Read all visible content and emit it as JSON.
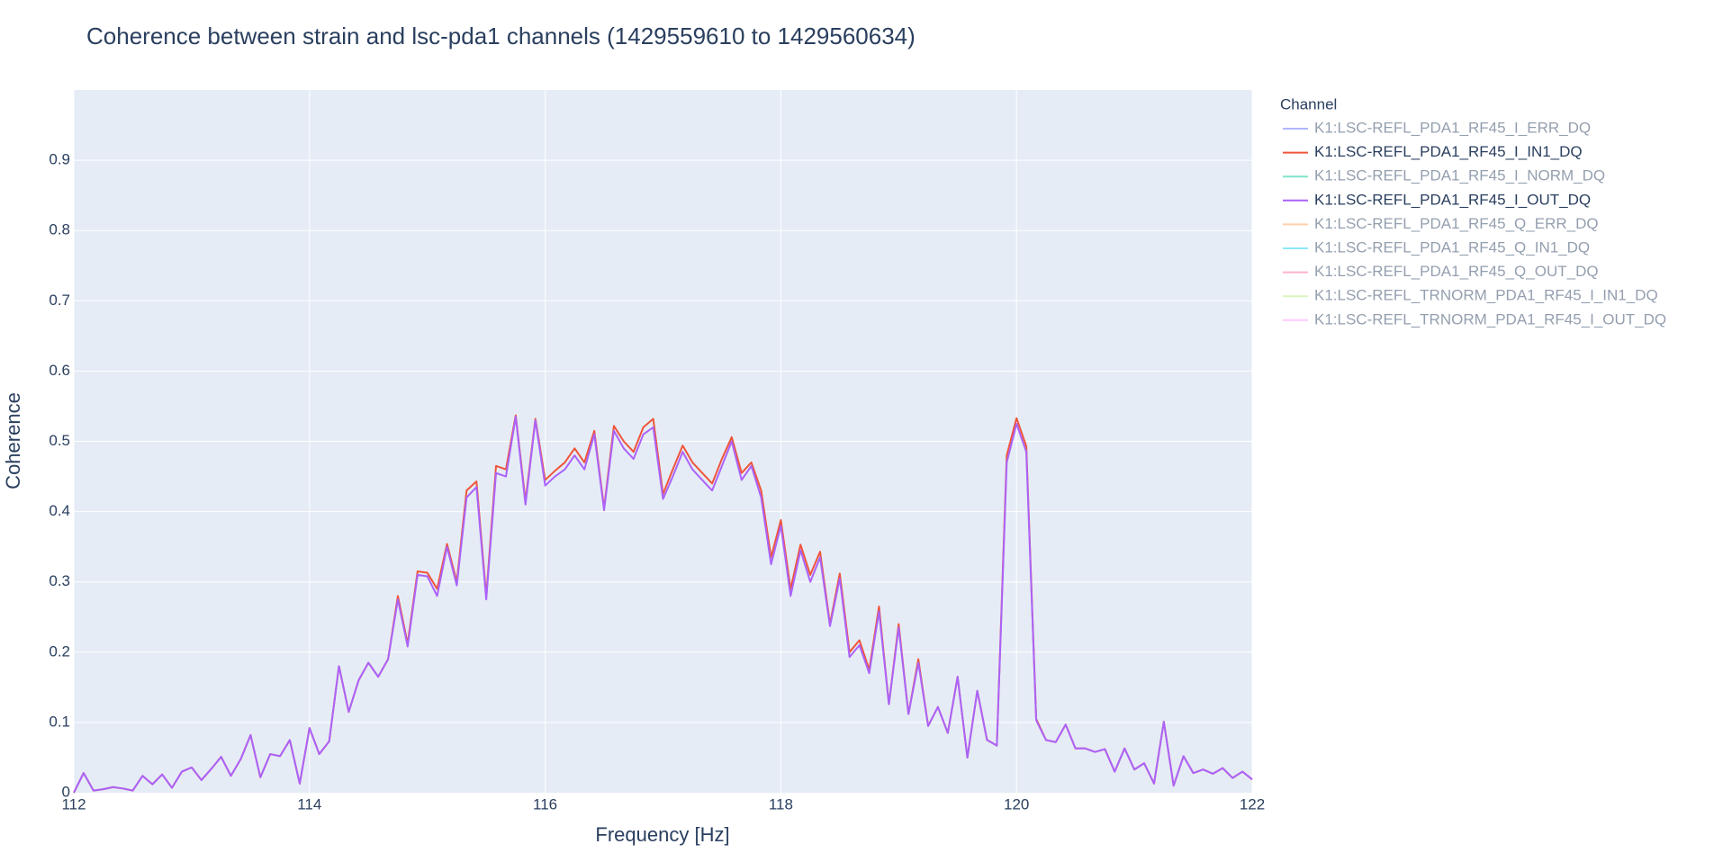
{
  "chart_data": {
    "type": "line",
    "title": "Coherence between strain and lsc-pda1 channels (1429559610 to 1429560634)",
    "x_label": "Frequency [Hz]",
    "y_label": "Coherence",
    "legend_title": "Channel",
    "x": [
      112,
      112.083,
      112.167,
      112.25,
      112.333,
      112.417,
      112.5,
      112.583,
      112.667,
      112.75,
      112.833,
      112.917,
      113,
      113.083,
      113.167,
      113.25,
      113.333,
      113.417,
      113.5,
      113.583,
      113.667,
      113.75,
      113.833,
      113.917,
      114,
      114.083,
      114.167,
      114.25,
      114.333,
      114.417,
      114.5,
      114.583,
      114.667,
      114.75,
      114.833,
      114.917,
      115,
      115.083,
      115.167,
      115.25,
      115.333,
      115.417,
      115.5,
      115.583,
      115.667,
      115.75,
      115.833,
      115.917,
      116,
      116.083,
      116.167,
      116.25,
      116.333,
      116.417,
      116.5,
      116.583,
      116.667,
      116.75,
      116.833,
      116.917,
      117,
      117.083,
      117.167,
      117.25,
      117.333,
      117.417,
      117.5,
      117.583,
      117.667,
      117.75,
      117.833,
      117.917,
      118,
      118.083,
      118.167,
      118.25,
      118.333,
      118.417,
      118.5,
      118.583,
      118.667,
      118.75,
      118.833,
      118.917,
      119,
      119.083,
      119.167,
      119.25,
      119.333,
      119.417,
      119.5,
      119.583,
      119.667,
      119.75,
      119.833,
      119.917,
      120,
      120.083,
      120.167,
      120.25,
      120.333,
      120.417,
      120.5,
      120.583,
      120.667,
      120.75,
      120.833,
      120.917,
      121,
      121.083,
      121.167,
      121.25,
      121.333,
      121.417,
      121.5,
      121.583,
      121.667,
      121.75,
      121.833,
      121.917,
      122
    ],
    "series": [
      {
        "name": "K1:LSC-REFL_PDA1_RF45_I_ERR_DQ",
        "color": "#636efa",
        "visible": "legendonly"
      },
      {
        "name": "K1:LSC-REFL_PDA1_RF45_I_IN1_DQ",
        "color": "#EF553B",
        "values": [
          0,
          0.028,
          0.003,
          0.005,
          0.008,
          0.006,
          0.003,
          0.024,
          0.012,
          0.026,
          0.007,
          0.03,
          0.036,
          0.018,
          0.034,
          0.051,
          0.024,
          0.048,
          0.082,
          0.022,
          0.055,
          0.052,
          0.075,
          0.013,
          0.092,
          0.055,
          0.073,
          0.18,
          0.115,
          0.16,
          0.185,
          0.165,
          0.19,
          0.28,
          0.212,
          0.315,
          0.313,
          0.29,
          0.354,
          0.3,
          0.43,
          0.443,
          0.28,
          0.465,
          0.46,
          0.537,
          0.415,
          0.532,
          0.445,
          0.458,
          0.47,
          0.49,
          0.47,
          0.515,
          0.405,
          0.522,
          0.5,
          0.485,
          0.52,
          0.532,
          0.425,
          0.46,
          0.494,
          0.47,
          0.455,
          0.44,
          0.475,
          0.506,
          0.455,
          0.47,
          0.43,
          0.335,
          0.388,
          0.29,
          0.353,
          0.31,
          0.343,
          0.24,
          0.312,
          0.2,
          0.217,
          0.175,
          0.265,
          0.126,
          0.24,
          0.112,
          0.19,
          0.095,
          0.122,
          0.085,
          0.165,
          0.05,
          0.145,
          0.075,
          0.067,
          0.48,
          0.533,
          0.493,
          0.105,
          0.075,
          0.072,
          0.097,
          0.063,
          0.063,
          0.058,
          0.062,
          0.03,
          0.063,
          0.033,
          0.042,
          0.013,
          0.101,
          0.01,
          0.052,
          0.028,
          0.033,
          0.027,
          0.035,
          0.021,
          0.03,
          0.019
        ]
      },
      {
        "name": "K1:LSC-REFL_PDA1_RF45_I_NORM_DQ",
        "color": "#00cc96",
        "visible": "legendonly"
      },
      {
        "name": "K1:LSC-REFL_PDA1_RF45_I_OUT_DQ",
        "color": "#ab63fa",
        "values": [
          0,
          0.028,
          0.003,
          0.005,
          0.008,
          0.006,
          0.003,
          0.024,
          0.012,
          0.026,
          0.007,
          0.03,
          0.036,
          0.018,
          0.034,
          0.051,
          0.024,
          0.048,
          0.082,
          0.022,
          0.055,
          0.052,
          0.075,
          0.013,
          0.092,
          0.055,
          0.073,
          0.18,
          0.115,
          0.16,
          0.185,
          0.165,
          0.19,
          0.275,
          0.208,
          0.31,
          0.308,
          0.28,
          0.35,
          0.295,
          0.42,
          0.435,
          0.275,
          0.455,
          0.45,
          0.535,
          0.41,
          0.53,
          0.437,
          0.45,
          0.46,
          0.48,
          0.46,
          0.51,
          0.402,
          0.515,
          0.49,
          0.475,
          0.51,
          0.52,
          0.418,
          0.45,
          0.485,
          0.46,
          0.445,
          0.43,
          0.465,
          0.5,
          0.445,
          0.465,
          0.42,
          0.325,
          0.38,
          0.28,
          0.345,
          0.3,
          0.335,
          0.237,
          0.305,
          0.193,
          0.21,
          0.17,
          0.258,
          0.126,
          0.235,
          0.112,
          0.185,
          0.095,
          0.122,
          0.085,
          0.165,
          0.05,
          0.145,
          0.075,
          0.067,
          0.47,
          0.525,
          0.485,
          0.103,
          0.075,
          0.072,
          0.097,
          0.063,
          0.063,
          0.058,
          0.062,
          0.03,
          0.063,
          0.033,
          0.042,
          0.013,
          0.101,
          0.01,
          0.052,
          0.028,
          0.033,
          0.027,
          0.035,
          0.021,
          0.03,
          0.019
        ]
      },
      {
        "name": "K1:LSC-REFL_PDA1_RF45_Q_ERR_DQ",
        "color": "#FFA15A",
        "visible": "legendonly"
      },
      {
        "name": "K1:LSC-REFL_PDA1_RF45_Q_IN1_DQ",
        "color": "#19d3f3",
        "visible": "legendonly"
      },
      {
        "name": "K1:LSC-REFL_PDA1_RF45_Q_OUT_DQ",
        "color": "#FF6692",
        "visible": "legendonly"
      },
      {
        "name": "K1:LSC-REFL_TRNORM_PDA1_RF45_I_IN1_DQ",
        "color": "#B6E880",
        "visible": "legendonly"
      },
      {
        "name": "K1:LSC-REFL_TRNORM_PDA1_RF45_I_OUT_DQ",
        "color": "#FF97FF",
        "visible": "legendonly"
      }
    ],
    "xlim": [
      112,
      122
    ],
    "xticks": [
      112,
      114,
      116,
      118,
      120,
      122
    ],
    "ylim": [
      0,
      1
    ],
    "yticks": [
      0,
      0.1,
      0.2,
      0.3,
      0.4,
      0.5,
      0.6,
      0.7,
      0.8,
      0.9
    ],
    "grid": true,
    "legend": "right"
  }
}
